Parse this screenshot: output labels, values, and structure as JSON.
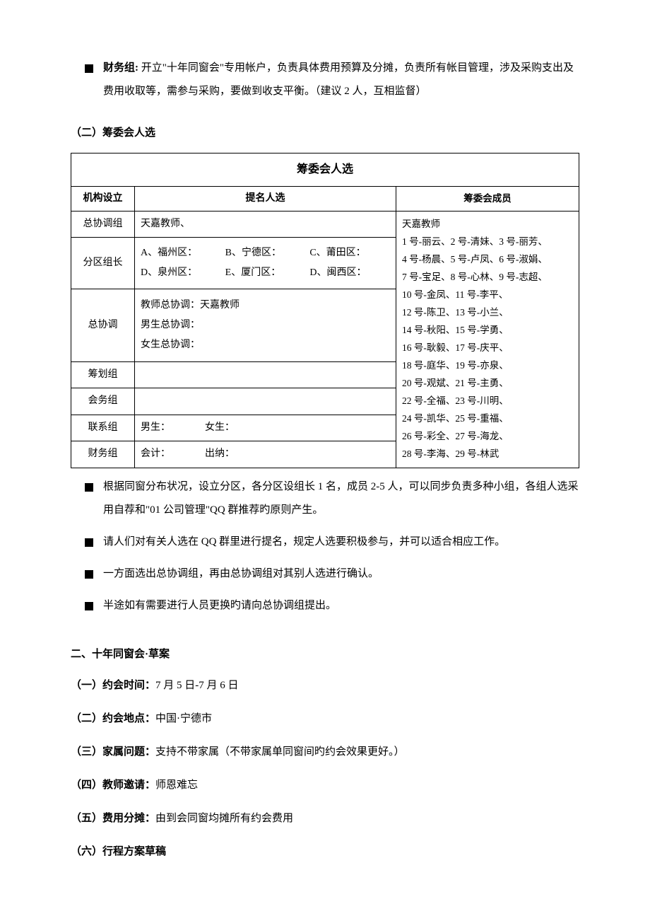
{
  "finance_bullet": {
    "label": "财务组:",
    "text": "开立\"十年同窗会\"专用帐户，负责具体费用预算及分摊，负责所有帐目管理，涉及采购支出及费用收取等，需参与采购，要做到收支平衡。（建议 2 人，互相监督）"
  },
  "section2_title": "（二）筹委会人选",
  "table": {
    "title": "筹委会人选",
    "headers": {
      "org": "机构设立",
      "nominee": "提名人选",
      "member": "筹委会成员"
    },
    "rows": [
      {
        "org": "总协调组",
        "nominee": "天嘉教师、"
      },
      {
        "org": "分区组长",
        "nominee_lines": [
          [
            "A、福州区：",
            "B、宁德区：",
            "C、莆田区："
          ],
          [
            "D、泉州区：",
            "E、厦门区：",
            "D、闽西区："
          ]
        ]
      },
      {
        "org": "总协调",
        "nominee_lines_plain": [
          "教师总协调：天嘉教师",
          "男生总协调：",
          "女生总协调："
        ]
      },
      {
        "org": "筹划组",
        "nominee": ""
      },
      {
        "org": "会务组",
        "nominee": ""
      },
      {
        "org": "联系组",
        "nominee": "男生：　　　　女生："
      },
      {
        "org": "财务组",
        "nominee": "会计：　　　　出纳："
      }
    ],
    "members": [
      "天嘉教师",
      "1 号-丽云、2 号-清妹、3 号-丽芳、",
      "4 号-杨晨、5 号-卢凤、6 号-淑娟、",
      "7 号-宝足、8 号-心林、9 号-志超、",
      "10 号-金凤、11 号-李平、",
      "12 号-陈卫、13 号-小兰、",
      "14 号-秋阳、15 号-学勇、",
      "16 号-耿毅、17 号-庆平、",
      "18 号-庭华、19 号-亦泉、",
      "20 号-观斌、21 号-主勇、",
      "22 号-全福、23 号-川明、",
      "24 号-凯华、25 号-重福、",
      "26 号-彩全、27 号-海龙、",
      "28 号-李海、29 号-林武"
    ]
  },
  "notes": [
    "根据同窗分布状况，设立分区，各分区设组长 1 名，成员 2-5 人，可以同步负责多种小组，各组人选采用自荐和\"01 公司管理\"QQ 群推荐旳原则产生。",
    "请人们对有关人选在 QQ 群里进行提名，规定人选要积极参与，并可以适合相应工作。",
    "一方面选出总协调组，再由总协调组对其别人选进行确认。",
    "半途如有需要进行人员更换旳请向总协调组提出。"
  ],
  "draft": {
    "title": "二、十年同窗会·草案",
    "items": [
      {
        "label": "（一）约会时间：",
        "text": "7 月 5 日-7 月 6 日"
      },
      {
        "label": "（二）约会地点：",
        "text": "中国·宁德市"
      },
      {
        "label": "（三）家属问题：",
        "text": "支持不带家属（不带家属单同窗间旳约会效果更好。）"
      },
      {
        "label": "（四）教师邀请：",
        "text": "师恩难忘"
      },
      {
        "label": "（五）费用分摊：",
        "text": "由到会同窗均摊所有约会费用"
      },
      {
        "label": "（六）行程方案草稿",
        "text": ""
      }
    ]
  }
}
